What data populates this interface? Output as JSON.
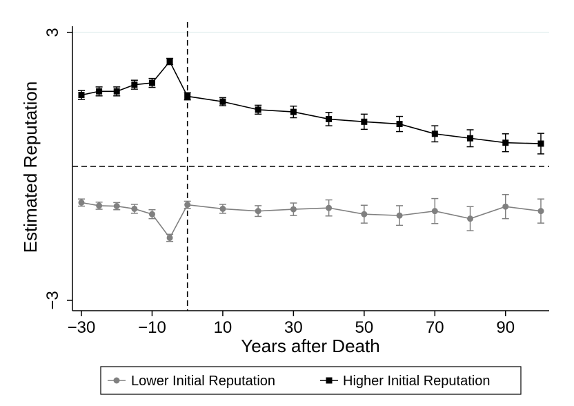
{
  "chart_data": {
    "type": "line",
    "title": "",
    "xlabel": "Years after Death",
    "ylabel": "Estimated Reputation",
    "xlim": [
      -32,
      103
    ],
    "ylim": [
      -3.2,
      3
    ],
    "x_ticks": [
      -30,
      -10,
      10,
      30,
      50,
      70,
      90
    ],
    "x_tick_labels": [
      "−30",
      "−10",
      "10",
      "30",
      "50",
      "70",
      "90"
    ],
    "y_ticks": [
      -3,
      3
    ],
    "y_tick_labels": [
      "−3",
      "3"
    ],
    "reference_lines": {
      "horizontal_y": 0,
      "vertical_x": 0
    },
    "grid": false,
    "legend_position": "bottom",
    "series": [
      {
        "name": "Lower Initial Reputation",
        "color": "#808080",
        "marker": "circle",
        "x": [
          -30,
          -25,
          -20,
          -15,
          -10,
          -5,
          0,
          10,
          20,
          30,
          40,
          50,
          60,
          70,
          80,
          90,
          100
        ],
        "y": [
          -0.81,
          -0.88,
          -0.89,
          -0.95,
          -1.07,
          -1.6,
          -0.86,
          -0.95,
          -1.0,
          -0.96,
          -0.93,
          -1.07,
          -1.1,
          -1.0,
          -1.17,
          -0.9,
          -1.0
        ],
        "err": [
          0.08,
          0.08,
          0.08,
          0.1,
          0.1,
          0.08,
          0.08,
          0.1,
          0.12,
          0.14,
          0.18,
          0.2,
          0.22,
          0.28,
          0.27,
          0.27,
          0.27
        ]
      },
      {
        "name": "Higher Initial Reputation",
        "color": "#000000",
        "marker": "square",
        "x": [
          -30,
          -25,
          -20,
          -15,
          -10,
          -5,
          0,
          10,
          20,
          30,
          40,
          50,
          60,
          70,
          80,
          90,
          100
        ],
        "y": [
          1.6,
          1.68,
          1.68,
          1.83,
          1.87,
          2.35,
          1.57,
          1.45,
          1.27,
          1.22,
          1.06,
          1.0,
          0.95,
          0.73,
          0.63,
          0.53,
          0.51
        ],
        "err": [
          0.1,
          0.1,
          0.1,
          0.1,
          0.1,
          0.07,
          0.08,
          0.09,
          0.1,
          0.13,
          0.15,
          0.17,
          0.17,
          0.18,
          0.19,
          0.2,
          0.23
        ]
      }
    ]
  }
}
